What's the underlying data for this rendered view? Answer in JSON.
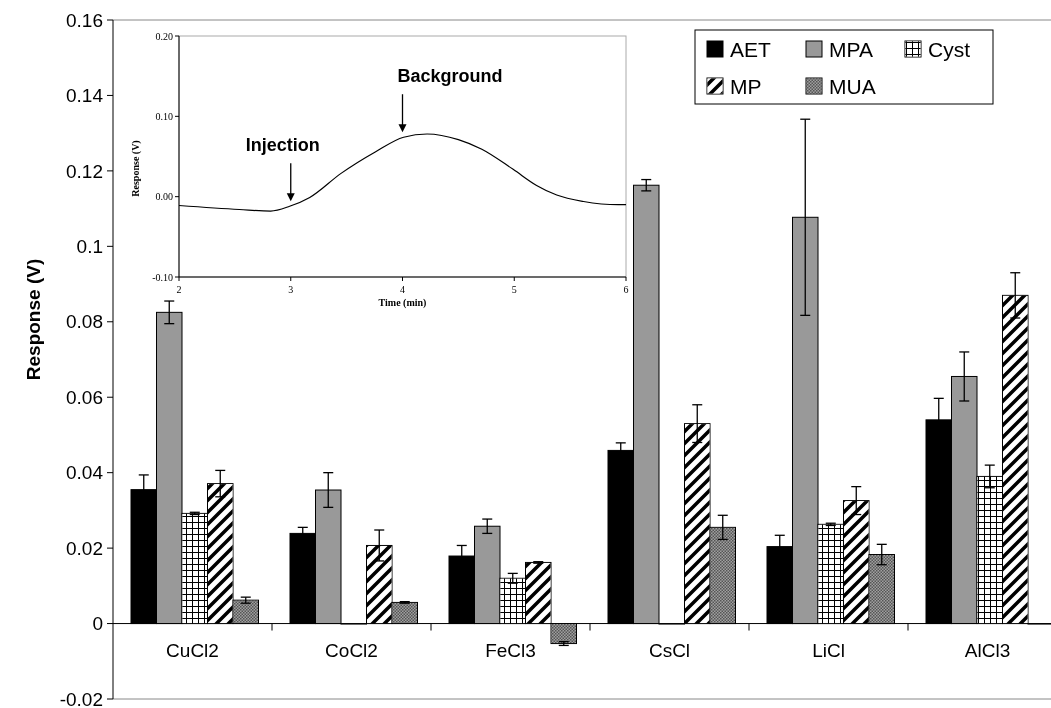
{
  "chart_data": [
    {
      "type": "bar",
      "ylabel": "Response (V)",
      "categories": [
        "CuCl2",
        "CoCl2",
        "FeCl3",
        "CsCl",
        "LiCl",
        "AlCl3"
      ],
      "series": [
        {
          "name": "AET",
          "color": "#000000",
          "values": [
            0.0355,
            0.0239,
            0.0179,
            0.0459,
            0.0204,
            0.054
          ],
          "errors": [
            0.0039,
            0.0016,
            0.0028,
            0.002,
            0.003,
            0.0057
          ]
        },
        {
          "name": "MPA",
          "color": "#999999",
          "values": [
            0.0825,
            0.0354,
            0.0258,
            0.1162,
            0.1077,
            0.0655
          ],
          "errors": [
            0.003,
            0.0046,
            0.0019,
            0.0015,
            0.026,
            0.0065
          ]
        },
        {
          "name": "Cyst",
          "color": "#ffffff",
          "values": [
            0.0292,
            0,
            0.012,
            0,
            0.0263,
            0.039
          ],
          "errors": [
            0.0003,
            null,
            0.0013,
            null,
            0.0003,
            0.003
          ]
        },
        {
          "name": "MP",
          "color": "#ffffff",
          "values": [
            0.0371,
            0.0207,
            0.0162,
            0.053,
            0.0326,
            0.087
          ],
          "errors": [
            0.0035,
            0.0041,
            0.0002,
            0.005,
            0.0037,
            0.006
          ]
        },
        {
          "name": "MUA",
          "color": "#a0a0a0",
          "values": [
            0.0062,
            0.0056,
            -0.0053,
            0.0255,
            0.0183,
            0
          ],
          "errors": [
            0.0008,
            0.0002,
            0.0005,
            0.0032,
            0.0027,
            null
          ]
        }
      ],
      "ylim": [
        -0.02,
        0.16
      ],
      "yticks": [
        -0.02,
        0,
        0.02,
        0.04,
        0.06,
        0.08,
        0.1,
        0.12,
        0.14,
        0.16
      ],
      "legend": "top right"
    },
    {
      "type": "line",
      "xlabel": "Time (min)",
      "ylabel": "Response (V)",
      "series": [
        {
          "color": "#000000",
          "x": [
            2,
            2.54,
            2.82,
            2.99,
            3.17,
            3.45,
            3.76,
            4.01,
            4.22,
            4.5,
            4.71,
            4.99,
            5.2,
            5.38,
            5.62,
            5.93,
            6
          ],
          "values": [
            -0.011,
            -0.016,
            -0.018,
            -0.012,
            -0.001,
            0.029,
            0.056,
            0.074,
            0.078,
            0.071,
            0.059,
            0.034,
            0.014,
            0.002,
            -0.006,
            -0.01,
            -0.01
          ]
        }
      ],
      "xlim": [
        2,
        6
      ],
      "xticks": [
        2,
        3,
        4,
        5,
        6
      ],
      "ylim": [
        -0.1,
        0.2
      ],
      "yticks": [
        {
          "value": -0.1,
          "label": "-0.10"
        },
        {
          "value": 0,
          "label": "0.00"
        },
        {
          "value": 0.1,
          "label": "0.10"
        },
        {
          "value": 0.2,
          "label": "0.20"
        }
      ],
      "annotations": [
        {
          "text": "Injection",
          "x": 3,
          "y": -0.012
        },
        {
          "text": "Background",
          "x": 4,
          "y": 0.074
        }
      ]
    }
  ]
}
